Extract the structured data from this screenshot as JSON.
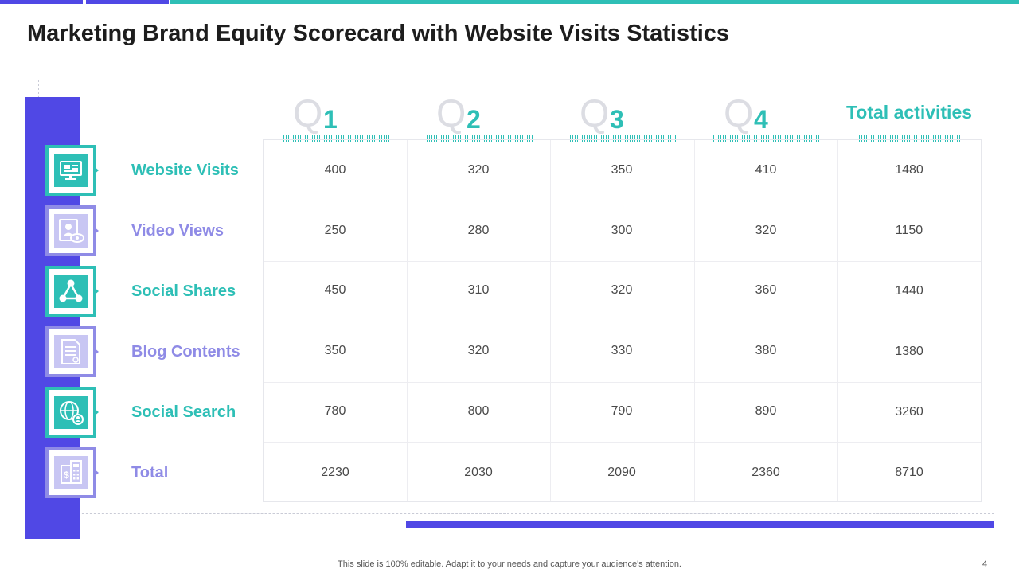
{
  "title": "Marketing Brand Equity Scorecard with Website Visits Statistics",
  "columns": {
    "q_letter": "Q",
    "quarters": [
      "1",
      "2",
      "3",
      "4"
    ],
    "total": "Total activities"
  },
  "rows": [
    {
      "label": "Website Visits",
      "icon": "computer-monitor-icon",
      "values": [
        "400",
        "320",
        "350",
        "410",
        "1480"
      ]
    },
    {
      "label": "Video Views",
      "icon": "video-person-eye-icon",
      "values": [
        "250",
        "280",
        "300",
        "320",
        "1150"
      ]
    },
    {
      "label": "Social Shares",
      "icon": "share-network-icon",
      "values": [
        "450",
        "310",
        "320",
        "360",
        "1440"
      ]
    },
    {
      "label": "Blog Contents",
      "icon": "document-icon",
      "values": [
        "350",
        "320",
        "330",
        "380",
        "1380"
      ]
    },
    {
      "label": "Social Search",
      "icon": "globe-user-icon",
      "values": [
        "780",
        "800",
        "790",
        "890",
        "3260"
      ]
    },
    {
      "label": "Total",
      "icon": "calculator-icon",
      "values": [
        "2230",
        "2030",
        "2090",
        "2360",
        "8710"
      ]
    }
  ],
  "footer": "This slide is 100% editable. Adapt it to your needs and capture your audience's attention.",
  "page_number": "4",
  "colors": {
    "accent": "#2ebfb6",
    "primary": "#5048e5",
    "secondary": "#8f8be6"
  }
}
